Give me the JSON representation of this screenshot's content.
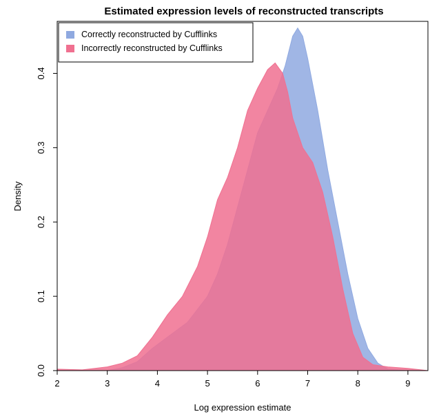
{
  "chart_data": {
    "type": "area",
    "title": "Estimated expression levels of reconstructed transcripts",
    "xlabel": "Log expression estimate",
    "ylabel": "Density",
    "xlim": [
      2,
      9.4
    ],
    "ylim": [
      0,
      0.47
    ],
    "x_ticks": [
      "2",
      "3",
      "4",
      "5",
      "6",
      "7",
      "8",
      "9"
    ],
    "y_ticks": [
      "0.0",
      "0.1",
      "0.2",
      "0.3",
      "0.4"
    ],
    "legend_position": "top-left",
    "series": [
      {
        "name": "Correctly reconstructed by Cufflinks",
        "color": "#8fa9e0",
        "points": [
          [
            2.0,
            0.0
          ],
          [
            2.5,
            0.0
          ],
          [
            3.0,
            0.0
          ],
          [
            3.3,
            0.004
          ],
          [
            3.6,
            0.012
          ],
          [
            3.9,
            0.03
          ],
          [
            4.2,
            0.045
          ],
          [
            4.6,
            0.065
          ],
          [
            5.0,
            0.1
          ],
          [
            5.2,
            0.13
          ],
          [
            5.4,
            0.17
          ],
          [
            5.6,
            0.22
          ],
          [
            5.8,
            0.27
          ],
          [
            6.0,
            0.32
          ],
          [
            6.2,
            0.35
          ],
          [
            6.4,
            0.38
          ],
          [
            6.55,
            0.41
          ],
          [
            6.7,
            0.45
          ],
          [
            6.8,
            0.461
          ],
          [
            6.9,
            0.45
          ],
          [
            7.0,
            0.42
          ],
          [
            7.2,
            0.35
          ],
          [
            7.4,
            0.27
          ],
          [
            7.6,
            0.2
          ],
          [
            7.8,
            0.13
          ],
          [
            8.0,
            0.07
          ],
          [
            8.2,
            0.03
          ],
          [
            8.4,
            0.01
          ],
          [
            8.6,
            0.002
          ],
          [
            9.0,
            0.0
          ],
          [
            9.4,
            0.0
          ]
        ]
      },
      {
        "name": "Incorrectly reconstructed by Cufflinks",
        "color": "#f07090",
        "points": [
          [
            2.0,
            0.002
          ],
          [
            2.5,
            0.001
          ],
          [
            3.0,
            0.005
          ],
          [
            3.3,
            0.01
          ],
          [
            3.6,
            0.02
          ],
          [
            3.9,
            0.045
          ],
          [
            4.2,
            0.075
          ],
          [
            4.5,
            0.1
          ],
          [
            4.8,
            0.14
          ],
          [
            5.0,
            0.18
          ],
          [
            5.2,
            0.23
          ],
          [
            5.4,
            0.26
          ],
          [
            5.6,
            0.3
          ],
          [
            5.8,
            0.35
          ],
          [
            6.0,
            0.38
          ],
          [
            6.2,
            0.405
          ],
          [
            6.35,
            0.414
          ],
          [
            6.5,
            0.4
          ],
          [
            6.6,
            0.375
          ],
          [
            6.7,
            0.34
          ],
          [
            6.9,
            0.3
          ],
          [
            7.1,
            0.28
          ],
          [
            7.3,
            0.24
          ],
          [
            7.5,
            0.18
          ],
          [
            7.7,
            0.11
          ],
          [
            7.9,
            0.05
          ],
          [
            8.1,
            0.018
          ],
          [
            8.3,
            0.008
          ],
          [
            8.6,
            0.005
          ],
          [
            9.0,
            0.003
          ],
          [
            9.4,
            0.0
          ]
        ]
      }
    ]
  }
}
